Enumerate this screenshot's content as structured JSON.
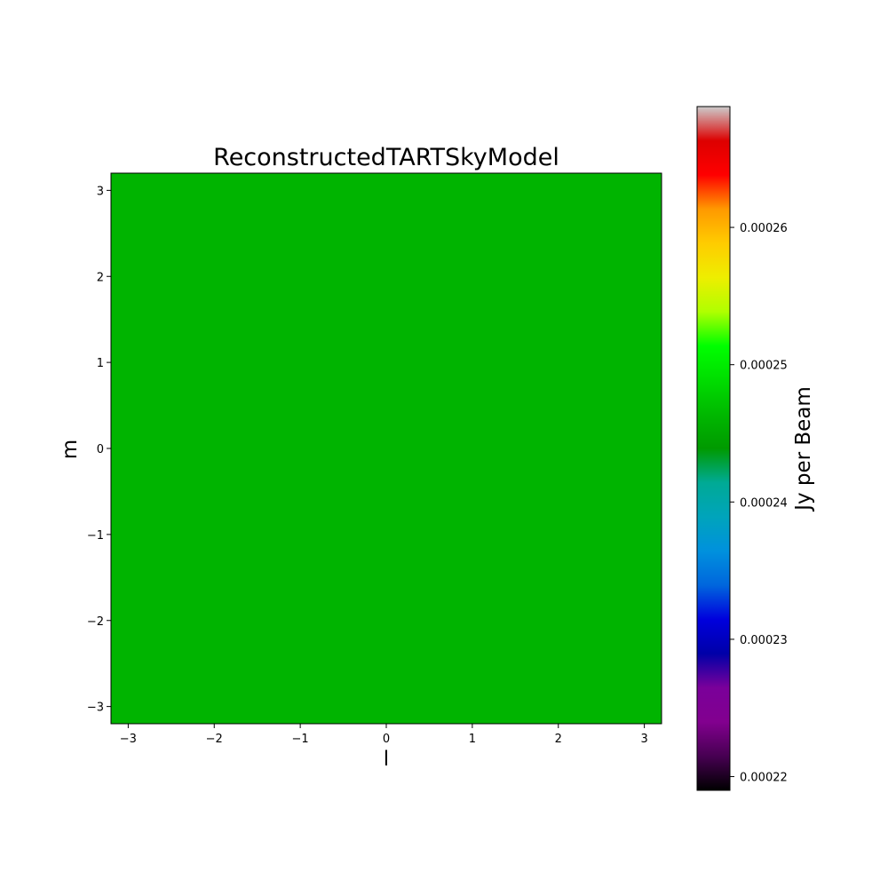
{
  "chart_data": {
    "type": "heatmap",
    "title": "ReconstructedTARTSkyModel",
    "xlabel": "l",
    "ylabel": "m",
    "xlim": [
      -3.2,
      3.2
    ],
    "ylim": [
      -3.2,
      3.2
    ],
    "x_ticks": [
      -3,
      -2,
      -1,
      0,
      1,
      2,
      3
    ],
    "y_ticks": [
      -3,
      -2,
      -1,
      0,
      1,
      2,
      3
    ],
    "x_tick_labels": [
      "−3",
      "−2",
      "−1",
      "0",
      "1",
      "2",
      "3"
    ],
    "y_tick_labels": [
      "−3",
      "−2",
      "−1",
      "0",
      "1",
      "2",
      "3"
    ],
    "image_value": 0.0002445,
    "image_color": "#00b400",
    "grid": false,
    "colorbar": {
      "label": "Jy per Beam",
      "colormap": "nipy_spectral",
      "vmin": 0.000219,
      "vmax": 0.0002688,
      "ticks": [
        0.00022,
        0.00023,
        0.00024,
        0.00025,
        0.00026
      ],
      "tick_labels": [
        "0.00022",
        "0.00023",
        "0.00024",
        "0.00025",
        "0.00026"
      ]
    }
  }
}
